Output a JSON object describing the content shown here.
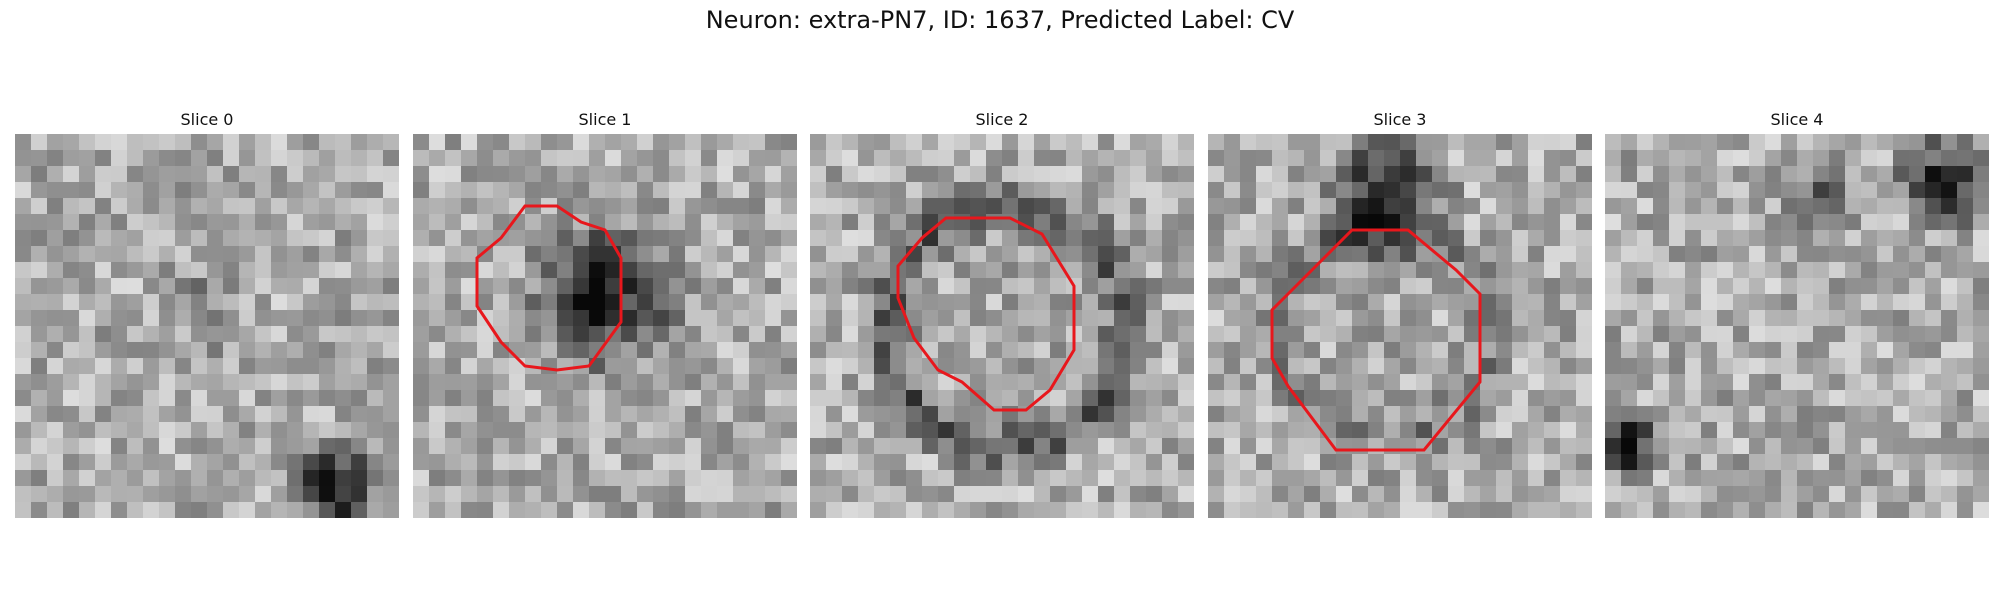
{
  "figure": {
    "title": "Neuron: extra-PN7, ID: 1637, Predicted Label: CV"
  },
  "slices": [
    {
      "label": "Slice 0",
      "has_contour": false
    },
    {
      "label": "Slice 1",
      "has_contour": true
    },
    {
      "label": "Slice 2",
      "has_contour": true
    },
    {
      "label": "Slice 3",
      "has_contour": true
    },
    {
      "label": "Slice 4",
      "has_contour": false
    }
  ],
  "colors": {
    "contour": "#e8171c",
    "background": "#ffffff"
  },
  "image_style": "grayscale-pixel-grid"
}
